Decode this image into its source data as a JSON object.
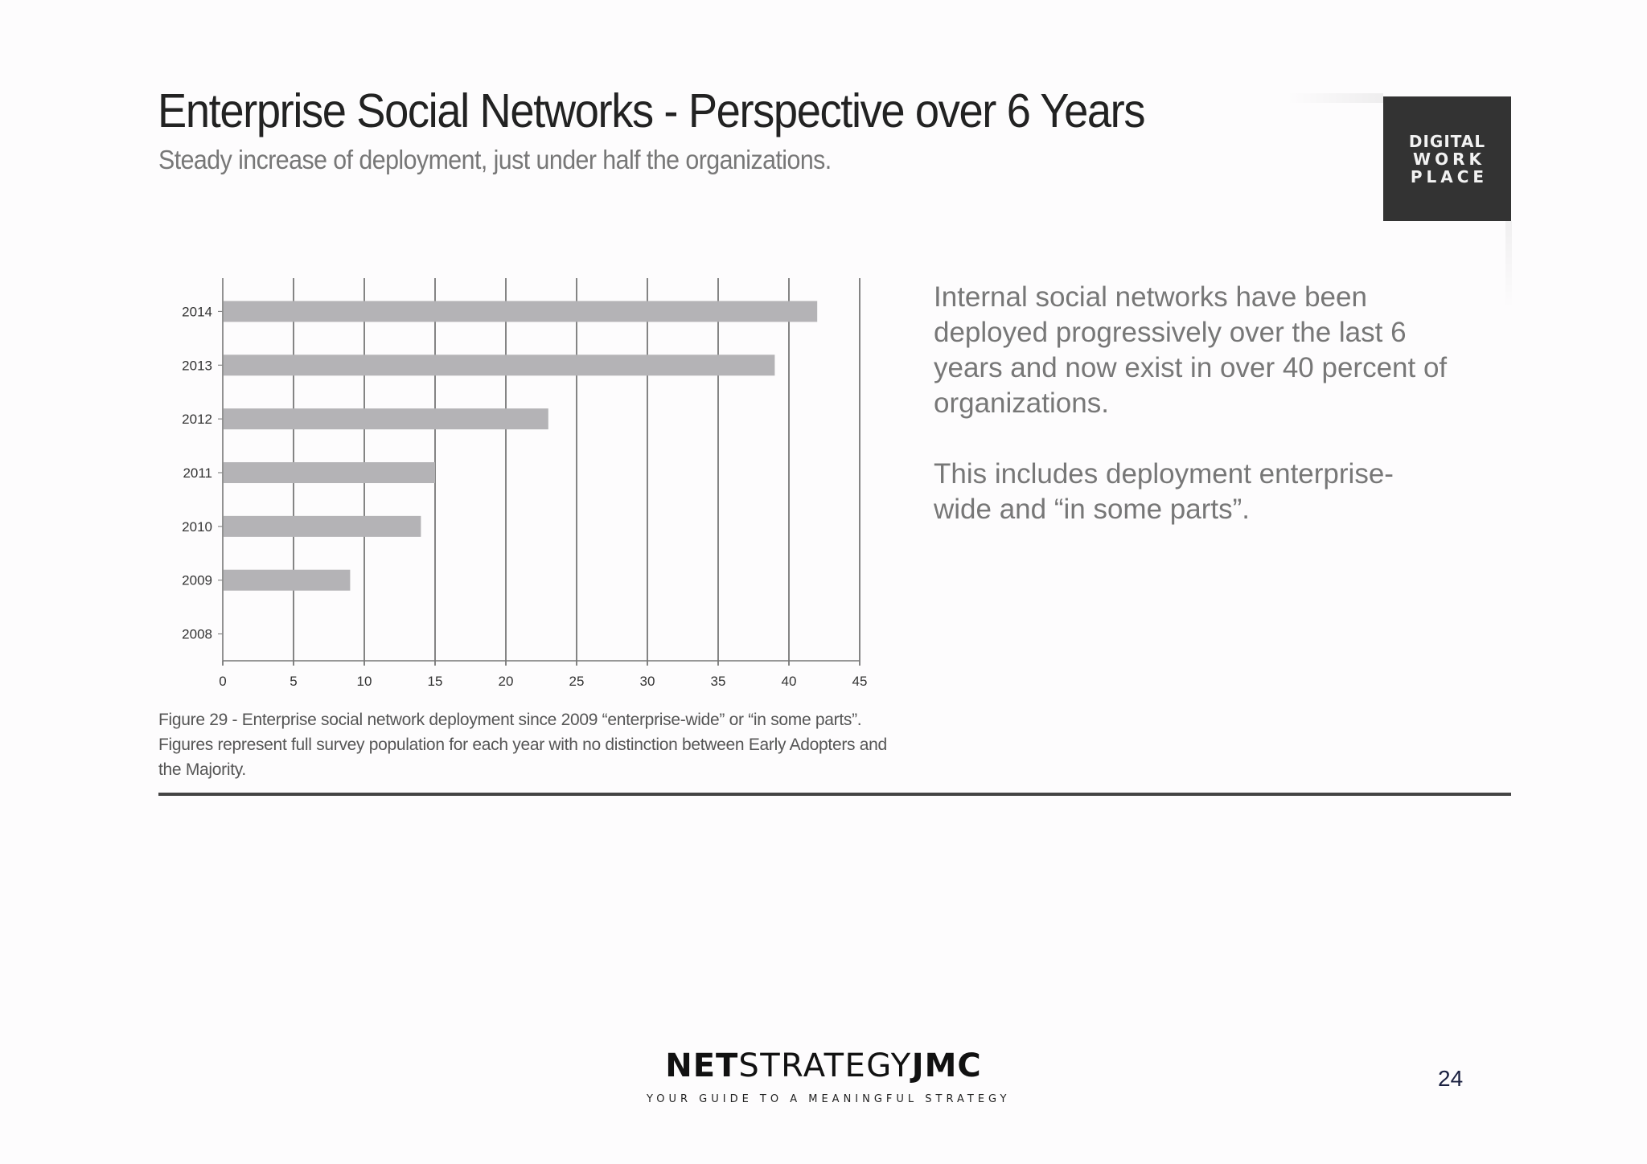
{
  "slide": {
    "title": "Enterprise Social Networks - Perspective over 6 Years",
    "subtitle": "Steady increase of deployment, just under half the organizations.",
    "logo": {
      "line1": "DIGITAL",
      "line2": "WORK",
      "line3": "PLACE",
      "bg_color": "#333333"
    },
    "body": {
      "paragraph1": "Internal social networks have been deployed progressively over the last 6 years and now exist in over 40 percent of organizations.",
      "paragraph2": "This includes deployment enterprise-wide and “in some parts”."
    },
    "caption": "Figure 29 - Enterprise social network deployment since 2009 “enterprise-wide” or “in some parts”. Figures represent full survey population for each year with no distinction between Early Adopters and the Majority.",
    "footer": {
      "brand_bold1": "NET",
      "brand_thin": "STRATEGY",
      "brand_bold2": "JMC",
      "tagline": "YOUR GUIDE TO A MEANINGFUL STRATEGY",
      "page_number": "24"
    }
  },
  "chart_data": {
    "type": "bar",
    "orientation": "horizontal",
    "categories": [
      "2014",
      "2013",
      "2012",
      "2011",
      "2010",
      "2009",
      "2008"
    ],
    "values": [
      42,
      39,
      23,
      15,
      14,
      9,
      0
    ],
    "xlim": [
      0,
      45
    ],
    "xticks": [
      0,
      5,
      10,
      15,
      20,
      25,
      30,
      35,
      40,
      45
    ],
    "grid": true,
    "bar_color": "#b4b3b6",
    "grid_color": "#666666",
    "title": "",
    "xlabel": "",
    "ylabel": ""
  }
}
